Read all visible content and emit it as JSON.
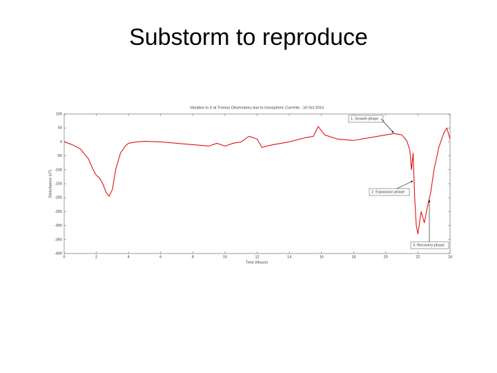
{
  "slide_title": "Substorm to reproduce",
  "chart_data": {
    "type": "line",
    "title": "Variation in X at Tromso Observatory due to Ionospheric Currents - 16 Oct 2014",
    "xlabel": "Time (Hours)",
    "ylabel": "Disturbance (nT)",
    "x": [
      0,
      0.5,
      1.0,
      1.5,
      1.8,
      2.0,
      2.2,
      2.4,
      2.6,
      2.8,
      3.0,
      3.2,
      3.5,
      3.8,
      4.0,
      4.5,
      5,
      6,
      7,
      8,
      9,
      9.5,
      10,
      10.5,
      11,
      11.5,
      12,
      12.3,
      12.6,
      13,
      14,
      15,
      15.5,
      15.8,
      16.2,
      17,
      18,
      19,
      20,
      20.5,
      21,
      21.3,
      21.5,
      21.6,
      21.7,
      21.8,
      21.9,
      22.0,
      22.2,
      22.4,
      22.6,
      22.8,
      23.0,
      23.3,
      23.6,
      23.8,
      24
    ],
    "values": [
      0,
      -10,
      -25,
      -60,
      -100,
      -120,
      -130,
      -150,
      -180,
      -195,
      -170,
      -100,
      -40,
      -15,
      -5,
      0,
      2,
      0,
      -5,
      -10,
      -15,
      -5,
      -15,
      -5,
      0,
      20,
      10,
      -20,
      -15,
      -10,
      0,
      15,
      20,
      55,
      25,
      10,
      5,
      15,
      25,
      30,
      25,
      5,
      -30,
      -100,
      -40,
      -200,
      -300,
      -330,
      -250,
      -290,
      -230,
      -180,
      -100,
      -20,
      30,
      50,
      10
    ],
    "color": "#e01010",
    "xlim": [
      0,
      24
    ],
    "xticks": [
      0,
      2,
      4,
      6,
      8,
      10,
      12,
      14,
      16,
      18,
      20,
      22,
      24
    ],
    "ylim": [
      -400,
      100
    ],
    "yticks": [
      -400,
      -350,
      -300,
      -250,
      -200,
      -150,
      -100,
      -50,
      0,
      50,
      100
    ],
    "annotations": [
      "1. Growth phase",
      "2. Expansion phase",
      "3. Recovery phase"
    ]
  }
}
